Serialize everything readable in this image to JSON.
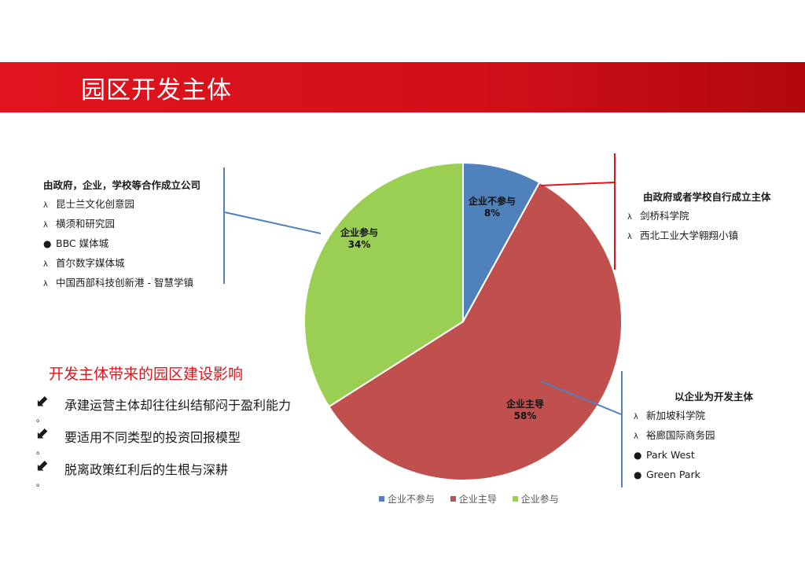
{
  "banner": {
    "title": "园区开发主体"
  },
  "colors": {
    "blue": "#4f81bd",
    "red": "#c0504d",
    "green": "#9bcf53",
    "brand_red": "#e0141e"
  },
  "chart_data": {
    "type": "pie",
    "title": "",
    "slices": [
      {
        "name": "企业不参与",
        "value": 8,
        "label": "8%",
        "color": "#4f81bd"
      },
      {
        "name": "企业主导",
        "value": 58,
        "label": "58%",
        "color": "#c0504d"
      },
      {
        "name": "企业参与",
        "value": 34,
        "label": "34%",
        "color": "#9bcf53"
      }
    ],
    "legend_position": "bottom"
  },
  "left_box": {
    "heading": "由政府，企业，学校等合作成立公司",
    "items": [
      {
        "marker": "λ",
        "text": "昆士兰文化创意园"
      },
      {
        "marker": "λ",
        "text": "横须和研究园"
      },
      {
        "marker": "●",
        "text": "BBC 媒体城"
      },
      {
        "marker": "λ",
        "text": "首尔数字媒体城"
      },
      {
        "marker": "λ",
        "text": "中国西部科技创新港 - 智慧学镇"
      }
    ]
  },
  "right_top_box": {
    "heading": "由政府或者学校自行成立主体",
    "items": [
      {
        "marker": "λ",
        "text": "剑桥科学院"
      },
      {
        "marker": "λ",
        "text": "西北工业大学翱翔小镇"
      }
    ]
  },
  "right_bottom_box": {
    "heading": "以企业为开发主体",
    "items": [
      {
        "marker": "λ",
        "text": "新加坡科学院"
      },
      {
        "marker": "λ",
        "text": "裕廊国际商务园"
      },
      {
        "marker": "●",
        "text": "Park West"
      },
      {
        "marker": "●",
        "text": "Green Park"
      }
    ]
  },
  "impact": {
    "title": "开发主体带来的园区建设影响",
    "arrow_icon": "⬋",
    "items": [
      {
        "text": "承建运营主体却往往纠结郁闷于盈利能力",
        "tail": "。"
      },
      {
        "text": "要适用不同类型的投资回报模型",
        "tail": "。"
      },
      {
        "text": "脱离政策红利后的生根与深耕",
        "tail": "。"
      }
    ]
  }
}
